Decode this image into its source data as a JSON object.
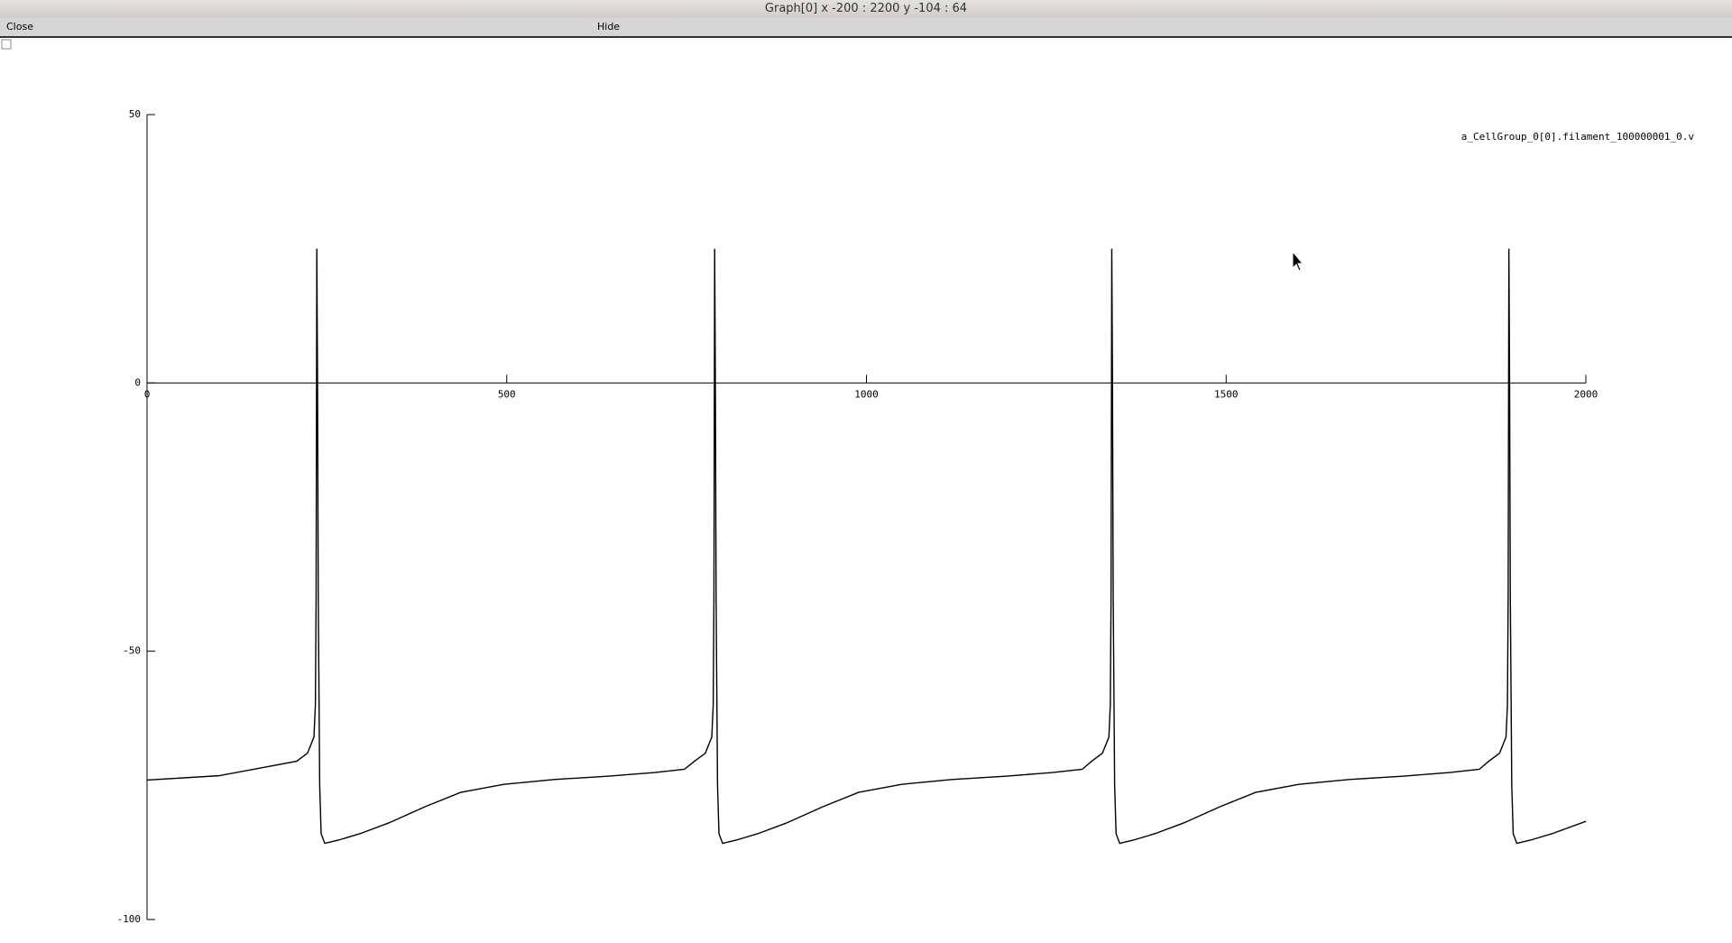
{
  "window": {
    "title": "Graph[0]  x -200 : 2200  y -104 : 64"
  },
  "menu": {
    "close": "Close",
    "hide": "Hide"
  },
  "chart_data": {
    "type": "line",
    "xlim": [
      0,
      2000
    ],
    "xticks": [
      0,
      500,
      1000,
      1500,
      2000
    ],
    "ylim": [
      -100,
      50
    ],
    "yticks": [
      -100,
      -50,
      0,
      50
    ],
    "series": [
      {
        "name": "a_CellGroup_0[0].filament_100000001_0.v",
        "color": "#000000",
        "x": [
          0,
          100,
          208,
          223,
          232,
          234,
          235,
          236,
          237,
          238,
          240,
          242,
          247,
          266,
          296,
          336,
          386,
          436,
          496,
          566,
          640,
          706,
          747,
          761,
          776,
          785,
          787,
          788,
          789,
          790,
          791,
          793,
          795,
          800,
          819,
          849,
          889,
          939,
          989,
          1049,
          1119,
          1193,
          1259,
          1300,
          1313,
          1328,
          1337,
          1339,
          1340,
          1341,
          1342,
          1343,
          1345,
          1347,
          1352,
          1371,
          1401,
          1441,
          1491,
          1541,
          1601,
          1671,
          1745,
          1811,
          1852,
          1865,
          1880,
          1889,
          1891,
          1892,
          1893,
          1894,
          1895,
          1897,
          1899,
          1904,
          1923,
          1953,
          2000
        ],
        "values": [
          -74,
          -73.2,
          -70.5,
          -69,
          -66,
          -60,
          -40,
          25,
          0,
          -40,
          -75,
          -84,
          -85.8,
          -85.2,
          -84,
          -82,
          -79,
          -76.3,
          -74.8,
          -73.9,
          -73.3,
          -72.6,
          -72,
          -70.5,
          -69,
          -66,
          -60,
          -40,
          25,
          0,
          -40,
          -75,
          -84,
          -85.8,
          -85.2,
          -84,
          -82,
          -79,
          -76.3,
          -74.8,
          -73.9,
          -73.3,
          -72.6,
          -72,
          -70.5,
          -69,
          -66,
          -60,
          -40,
          25,
          0,
          -40,
          -75,
          -84,
          -85.8,
          -85.2,
          -84,
          -82,
          -79,
          -76.3,
          -74.8,
          -73.9,
          -73.3,
          -72.6,
          -72,
          -70.5,
          -69,
          -66,
          -60,
          -40,
          25,
          0,
          -40,
          -75,
          -84,
          -85.8,
          -85.2,
          -84,
          -81.7
        ]
      }
    ]
  }
}
